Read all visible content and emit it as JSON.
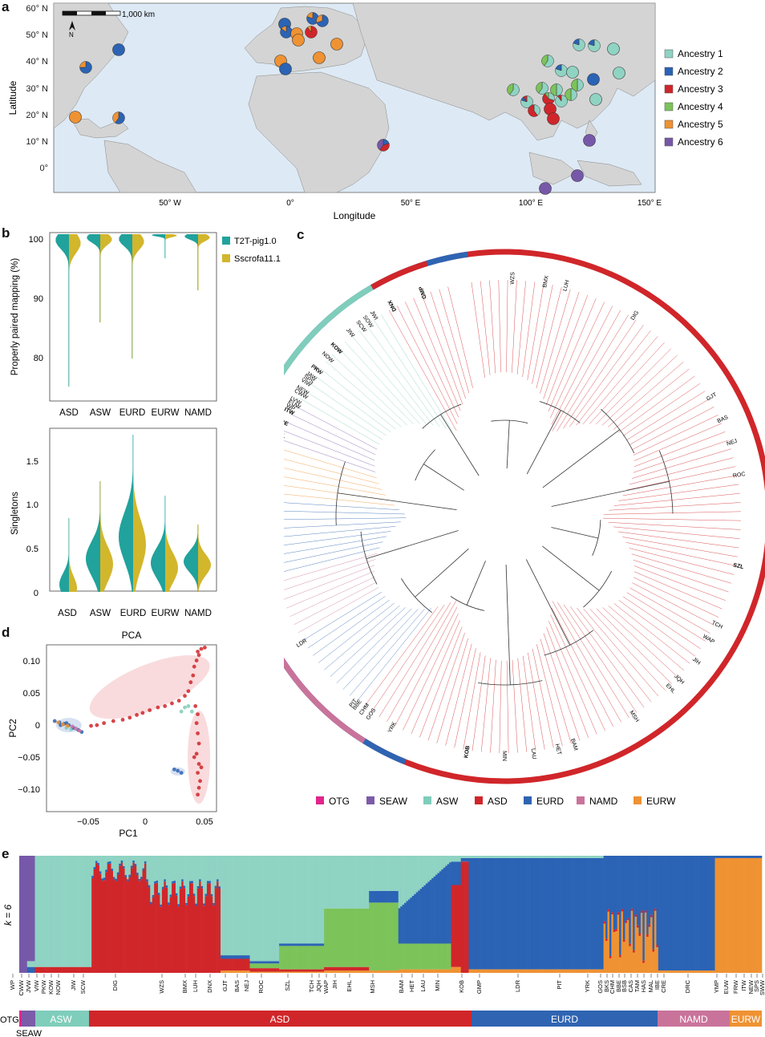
{
  "panel_letters": {
    "a": "a",
    "b": "b",
    "c": "c",
    "d": "d",
    "e": "e"
  },
  "colors": {
    "ancestry_1": "#8fd3c3",
    "ancestry_2": "#2b63b5",
    "ancestry_3": "#d0262a",
    "ancestry_4": "#7cc35a",
    "ancestry_5": "#ef9233",
    "ancestry_6": "#7758a8",
    "OTG": "#e0258b",
    "SEAW": "#7c5ba8",
    "ASW": "#7fcdbb",
    "ASD": "#d0262a",
    "EURD": "#2f64b2",
    "NAMD": "#c9739b",
    "EURW": "#ef9233",
    "T2T": "#21a29c",
    "Sscrofa": "#d2b62c"
  },
  "map": {
    "ylabel": "Latitude",
    "xlabel": "Longitude",
    "lat_ticks": [
      "60° N",
      "50° N",
      "40° N",
      "30° N",
      "20° N",
      "10° N",
      "0°"
    ],
    "lon_ticks": [
      "50° W",
      "0°",
      "50° E",
      "100° E",
      "150° E"
    ],
    "scale_label": "1,000 km",
    "north_label": "N",
    "legend": [
      "Ancestry 1",
      "Ancestry 2",
      "Ancestry 3",
      "Ancestry 4",
      "Ancestry 5",
      "Ancestry 6"
    ]
  },
  "violin_top": {
    "ylabel": "Properly paired mapping (%)",
    "yticks": [
      "100",
      "90",
      "80"
    ],
    "groups": [
      "ASD",
      "ASW",
      "EURD",
      "EURW",
      "NAMD"
    ],
    "legend": [
      "T2T-pig1.0",
      "Sscrofa11.1"
    ]
  },
  "violin_bottom": {
    "ylabel": "Singletons",
    "yticks": [
      "1.5",
      "1.0",
      "0.5",
      "0"
    ],
    "groups": [
      "ASD",
      "ASW",
      "EURD",
      "EURW",
      "NAMD"
    ]
  },
  "chart_data": [
    {
      "type": "scatter",
      "title": "PCA",
      "xlabel": "PC1",
      "ylabel": "PC2",
      "xticks": [
        "−0.05",
        "0",
        "0.05"
      ],
      "yticks": [
        "0.10",
        "0.05",
        "0",
        "−0.05",
        "−0.10"
      ],
      "xlim": [
        -0.085,
        0.06
      ],
      "ylim": [
        -0.125,
        0.12
      ],
      "series": [
        {
          "name": "ASD",
          "points": [
            [
              -0.047,
              0.001
            ],
            [
              -0.042,
              0.002
            ],
            [
              -0.036,
              0.005
            ],
            [
              -0.028,
              0.008
            ],
            [
              -0.02,
              0.01
            ],
            [
              -0.014,
              0.013
            ],
            [
              -0.008,
              0.017
            ],
            [
              -0.003,
              0.02
            ],
            [
              0.003,
              0.024
            ],
            [
              0.01,
              0.028
            ],
            [
              0.016,
              0.03
            ],
            [
              0.022,
              0.034
            ],
            [
              0.028,
              0.038
            ],
            [
              0.033,
              0.045
            ],
            [
              0.036,
              0.052
            ],
            [
              0.038,
              0.065
            ],
            [
              0.04,
              0.075
            ],
            [
              0.041,
              0.088
            ],
            [
              0.043,
              0.097
            ],
            [
              0.045,
              0.105
            ],
            [
              0.044,
              0.11
            ],
            [
              0.047,
              0.114
            ],
            [
              0.05,
              0.116
            ],
            [
              0.042,
              0.03
            ],
            [
              0.044,
              0.018
            ],
            [
              0.043,
              0.005
            ],
            [
              0.044,
              -0.01
            ],
            [
              0.045,
              -0.025
            ],
            [
              0.043,
              -0.04
            ],
            [
              0.045,
              -0.055
            ],
            [
              0.044,
              -0.068
            ],
            [
              0.046,
              -0.08
            ],
            [
              0.045,
              -0.09
            ],
            [
              0.044,
              -0.1
            ],
            [
              0.047,
              -0.06
            ],
            [
              0.041,
              -0.045
            ]
          ]
        },
        {
          "name": "ASW",
          "points": [
            [
              0.033,
              0.028
            ],
            [
              0.036,
              0.03
            ],
            [
              0.039,
              0.022
            ],
            [
              -0.068,
              -0.002
            ],
            [
              -0.064,
              -0.004
            ],
            [
              0.03,
              0.022
            ]
          ]
        },
        {
          "name": "EURD",
          "points": [
            [
              -0.078,
              0.008
            ],
            [
              -0.074,
              0.006
            ],
            [
              -0.07,
              0.004
            ],
            [
              -0.066,
              0.002
            ],
            [
              -0.062,
              -0.002
            ],
            [
              -0.058,
              -0.005
            ],
            [
              -0.055,
              -0.008
            ],
            [
              -0.073,
              0.002
            ],
            [
              -0.068,
              0.005
            ],
            [
              0.027,
              -0.065
            ],
            [
              0.03,
              -0.068
            ],
            [
              0.024,
              -0.063
            ]
          ]
        },
        {
          "name": "EURW",
          "points": [
            [
              -0.075,
              0.006
            ],
            [
              -0.071,
              0.003
            ],
            [
              -0.067,
              0.001
            ]
          ]
        },
        {
          "name": "NAMD",
          "points": [
            [
              -0.063,
              0.0
            ],
            [
              -0.06,
              -0.003
            ],
            [
              -0.057,
              -0.006
            ]
          ]
        }
      ],
      "ellipses": [
        "ASD",
        "ASD",
        "EURD",
        "EURD"
      ]
    }
  ],
  "tree": {
    "clade_labels": [
      "WZS",
      "BMX",
      "LUH",
      "DIG",
      "GJT",
      "BAS",
      "NEJ",
      "ROC",
      "SZL",
      "TCH",
      "WAP",
      "JIH",
      "JQH",
      "EHL",
      "MSH",
      "BAM",
      "HET",
      "LAU",
      "MIN",
      "KOB",
      "YRK",
      "GOS",
      "CHM",
      "BBE",
      "PIT",
      "LDR",
      "DRC",
      "HAS",
      "BSB",
      "BKS",
      "TAM",
      "CRE",
      "YMP",
      "CAS",
      "MAL",
      "IBE",
      "ITW",
      "EUW",
      "NEW",
      "SPS",
      "FRW",
      "WP",
      "LVW",
      "CWW",
      "VIW",
      "JAW",
      "PKW",
      "NOW",
      "KOW",
      "JIW",
      "SCW",
      "SOW",
      "JWI",
      "GMP",
      "DNX"
    ],
    "bold_labels": [
      "SZL",
      "KOB",
      "YMP",
      "IBE",
      "ITW",
      "KOW",
      "DNX",
      "GMP"
    ],
    "legend": [
      "OTG",
      "SEAW",
      "ASW",
      "ASD",
      "EURD",
      "NAMD",
      "EURW"
    ]
  },
  "structure": {
    "k_label": "k = 6",
    "population_labels": [
      "WP",
      "CWW",
      "JVW",
      "VIW",
      "PKW",
      "KOW",
      "NOW",
      "JIW",
      "SCW",
      "DIG",
      "WZS",
      "BMX",
      "LUH",
      "DNX",
      "GJT",
      "BAS",
      "NEJ",
      "ROC",
      "SZL",
      "TCH",
      "JQH",
      "WAP",
      "JIH",
      "EHL",
      "MSH",
      "BAM",
      "HET",
      "LAU",
      "MIN",
      "KOB",
      "GMP",
      "LDR",
      "PIT",
      "YRK",
      "GOS",
      "BKS",
      "CHM",
      "BBE",
      "BSB",
      "CAS",
      "TAM",
      "HAS",
      "MAL",
      "IBE",
      "CRE",
      "DRC",
      "YMP",
      "EUW",
      "FRW",
      "ITW",
      "NEW",
      "SPS",
      "SWW"
    ],
    "groups": [
      "OTG",
      "SEAW",
      "ASW",
      "ASD",
      "EURD",
      "NAMD",
      "EURW"
    ]
  }
}
